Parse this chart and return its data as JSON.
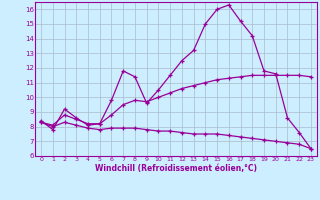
{
  "xlabel": "Windchill (Refroidissement éolien,°C)",
  "x": [
    0,
    1,
    2,
    3,
    4,
    5,
    6,
    7,
    8,
    9,
    10,
    11,
    12,
    13,
    14,
    15,
    16,
    17,
    18,
    19,
    20,
    21,
    22,
    23
  ],
  "curve1": [
    8.4,
    7.8,
    9.2,
    8.6,
    8.1,
    8.2,
    9.8,
    11.8,
    11.4,
    9.6,
    10.5,
    11.5,
    12.5,
    13.2,
    15.0,
    16.0,
    16.3,
    15.2,
    14.2,
    11.8,
    11.6,
    8.6,
    7.6,
    6.5
  ],
  "curve2": [
    8.3,
    8.1,
    8.8,
    8.5,
    8.2,
    8.2,
    8.8,
    9.5,
    9.8,
    9.7,
    10.0,
    10.3,
    10.6,
    10.8,
    11.0,
    11.2,
    11.3,
    11.4,
    11.5,
    11.5,
    11.5,
    11.5,
    11.5,
    11.4
  ],
  "curve3": [
    8.3,
    8.0,
    8.3,
    8.1,
    7.9,
    7.8,
    7.9,
    7.9,
    7.9,
    7.8,
    7.7,
    7.7,
    7.6,
    7.5,
    7.5,
    7.5,
    7.4,
    7.3,
    7.2,
    7.1,
    7.0,
    6.9,
    6.8,
    6.5
  ],
  "line_color": "#990099",
  "bg_color": "#cceeff",
  "grid_color": "#aabbcc",
  "ylim": [
    6,
    16.5
  ],
  "xlim": [
    -0.5,
    23.5
  ],
  "yticks": [
    6,
    7,
    8,
    9,
    10,
    11,
    12,
    13,
    14,
    15,
    16
  ],
  "xticks": [
    0,
    1,
    2,
    3,
    4,
    5,
    6,
    7,
    8,
    9,
    10,
    11,
    12,
    13,
    14,
    15,
    16,
    17,
    18,
    19,
    20,
    21,
    22,
    23
  ]
}
